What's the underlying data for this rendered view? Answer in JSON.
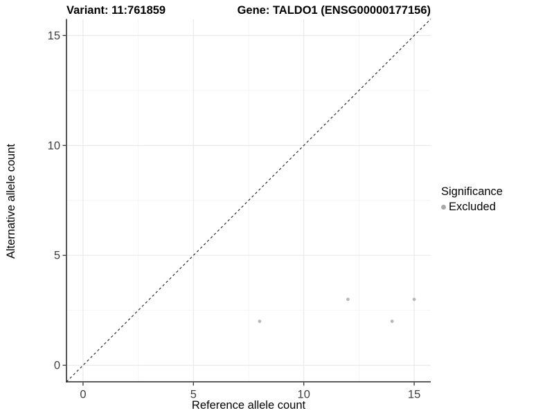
{
  "title": {
    "variant": "Variant: 11:761859",
    "gene": "Gene: TALDO1 (ENSG00000177156)"
  },
  "chart_data": {
    "type": "scatter",
    "title": "Variant: 11:761859   Gene: TALDO1 (ENSG00000177156)",
    "xlabel": "Reference allele count",
    "ylabel": "Alternative allele count",
    "xlim": [
      -0.75,
      15.75
    ],
    "ylim": [
      -0.75,
      15.75
    ],
    "x_ticks": [
      0,
      5,
      10,
      15
    ],
    "y_ticks": [
      0,
      5,
      10,
      15
    ],
    "x_minor_ticks": [
      2.5,
      7.5,
      12.5
    ],
    "y_minor_ticks": [
      2.5,
      7.5,
      12.5
    ],
    "grid": true,
    "identity_line": {
      "type": "y=x",
      "style": "dashed",
      "color": "#1a1a1a"
    },
    "series": [
      {
        "name": "Excluded",
        "color": "#b8b8b8",
        "points": [
          [
            8,
            2
          ],
          [
            12,
            3
          ],
          [
            14,
            2
          ],
          [
            15,
            3
          ]
        ]
      }
    ],
    "legend": {
      "title": "Significance",
      "position": "right",
      "items": [
        {
          "label": "Excluded",
          "color": "#a8a8a8"
        }
      ]
    }
  },
  "style_colors": {
    "grid_major": "#e7e7e7",
    "grid_minor": "#f3f3f3",
    "axis_line": "#444444",
    "tick_label": "#404040"
  }
}
